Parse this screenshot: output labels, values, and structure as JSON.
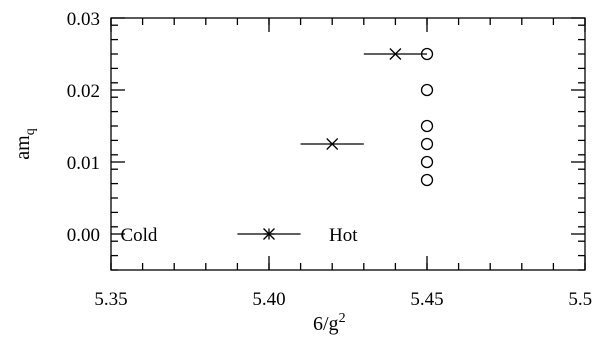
{
  "chart_data": {
    "type": "scatter",
    "xlabel": "6/g",
    "xlabel_sup": "2",
    "ylabel": "am",
    "ylabel_sub": "q",
    "xlim": [
      5.35,
      5.5
    ],
    "ylim": [
      -0.005,
      0.03
    ],
    "x_ticks": [
      {
        "value": 5.35,
        "label": "5.35"
      },
      {
        "value": 5.4,
        "label": "5.40"
      },
      {
        "value": 5.45,
        "label": "5.45"
      },
      {
        "value": 5.5,
        "label": "5.50"
      }
    ],
    "y_ticks": [
      {
        "value": 0.0,
        "label": "0.00"
      },
      {
        "value": 0.01,
        "label": "0.01"
      },
      {
        "value": 0.02,
        "label": "0.02"
      },
      {
        "value": 0.03,
        "label": "0.03"
      }
    ],
    "x_minor_step": 0.01,
    "y_minor_step": 0.002,
    "grid": false,
    "series": [
      {
        "marker": "circle",
        "points": [
          {
            "x": 5.45,
            "y": 0.025
          },
          {
            "x": 5.45,
            "y": 0.02
          },
          {
            "x": 5.45,
            "y": 0.015
          },
          {
            "x": 5.45,
            "y": 0.0125
          },
          {
            "x": 5.45,
            "y": 0.01
          },
          {
            "x": 5.45,
            "y": 0.0075
          }
        ]
      },
      {
        "marker": "cross",
        "points": [
          {
            "x": 5.44,
            "y": 0.025,
            "xlo": 5.43,
            "xhi": 5.45
          },
          {
            "x": 5.42,
            "y": 0.0125,
            "xlo": 5.41,
            "xhi": 5.43
          }
        ]
      },
      {
        "marker": "asterisk",
        "points": [
          {
            "x": 5.4,
            "y": 0.0,
            "xlo": 5.39,
            "xhi": 5.41
          }
        ]
      }
    ],
    "annotations": [
      {
        "text": "Cold",
        "x": 5.353,
        "y": 0.0
      },
      {
        "text": "Hot",
        "x": 5.419,
        "y": 0.0
      }
    ]
  }
}
